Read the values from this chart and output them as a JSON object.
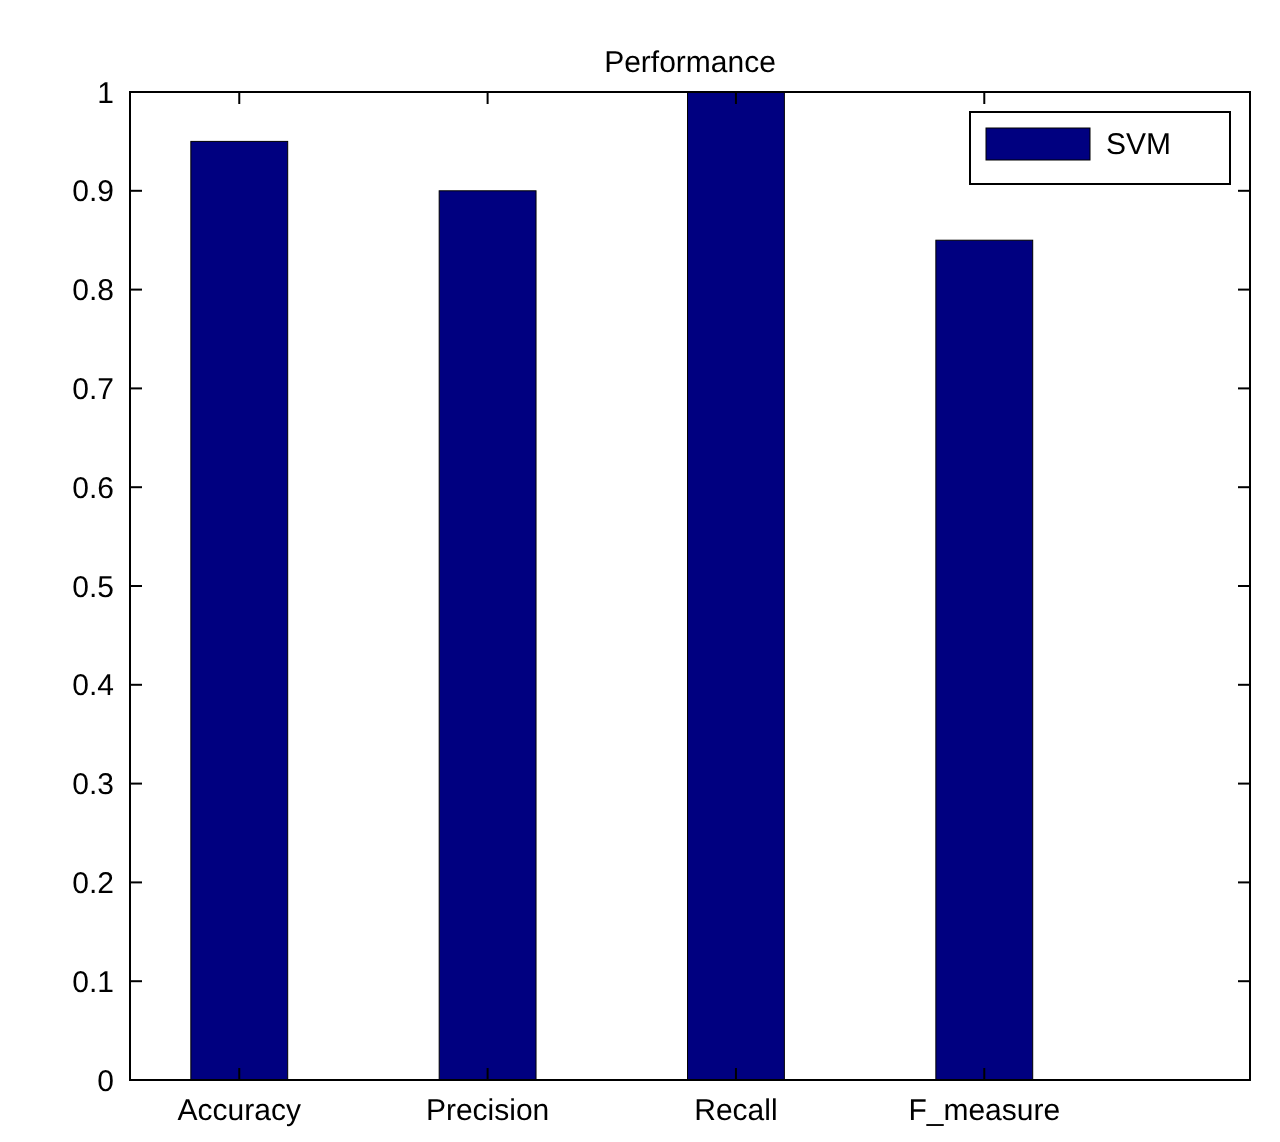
{
  "chart_data": {
    "type": "bar",
    "title": "Performance",
    "categories": [
      "Accuracy",
      "Precision",
      "Recall",
      "F_measure"
    ],
    "series": [
      {
        "name": "SVM",
        "color": "#000080",
        "values": [
          0.95,
          0.9,
          1.0,
          0.85
        ]
      }
    ],
    "ylim": [
      0,
      1
    ],
    "yticks": [
      0,
      {
        "value": 0.1,
        "label": "0.1"
      },
      {
        "value": 0.2,
        "label": "0.2"
      },
      {
        "value": 0.3,
        "label": "0.3"
      },
      {
        "value": 0.4,
        "label": "0.4"
      },
      {
        "value": 0.5,
        "label": "0.5"
      },
      {
        "value": 0.6,
        "label": "0.6"
      },
      {
        "value": 0.7,
        "label": "0.7"
      },
      {
        "value": 0.8,
        "label": "0.8"
      },
      {
        "value": 0.9,
        "label": "0.9"
      },
      1
    ],
    "legend": "top right"
  }
}
